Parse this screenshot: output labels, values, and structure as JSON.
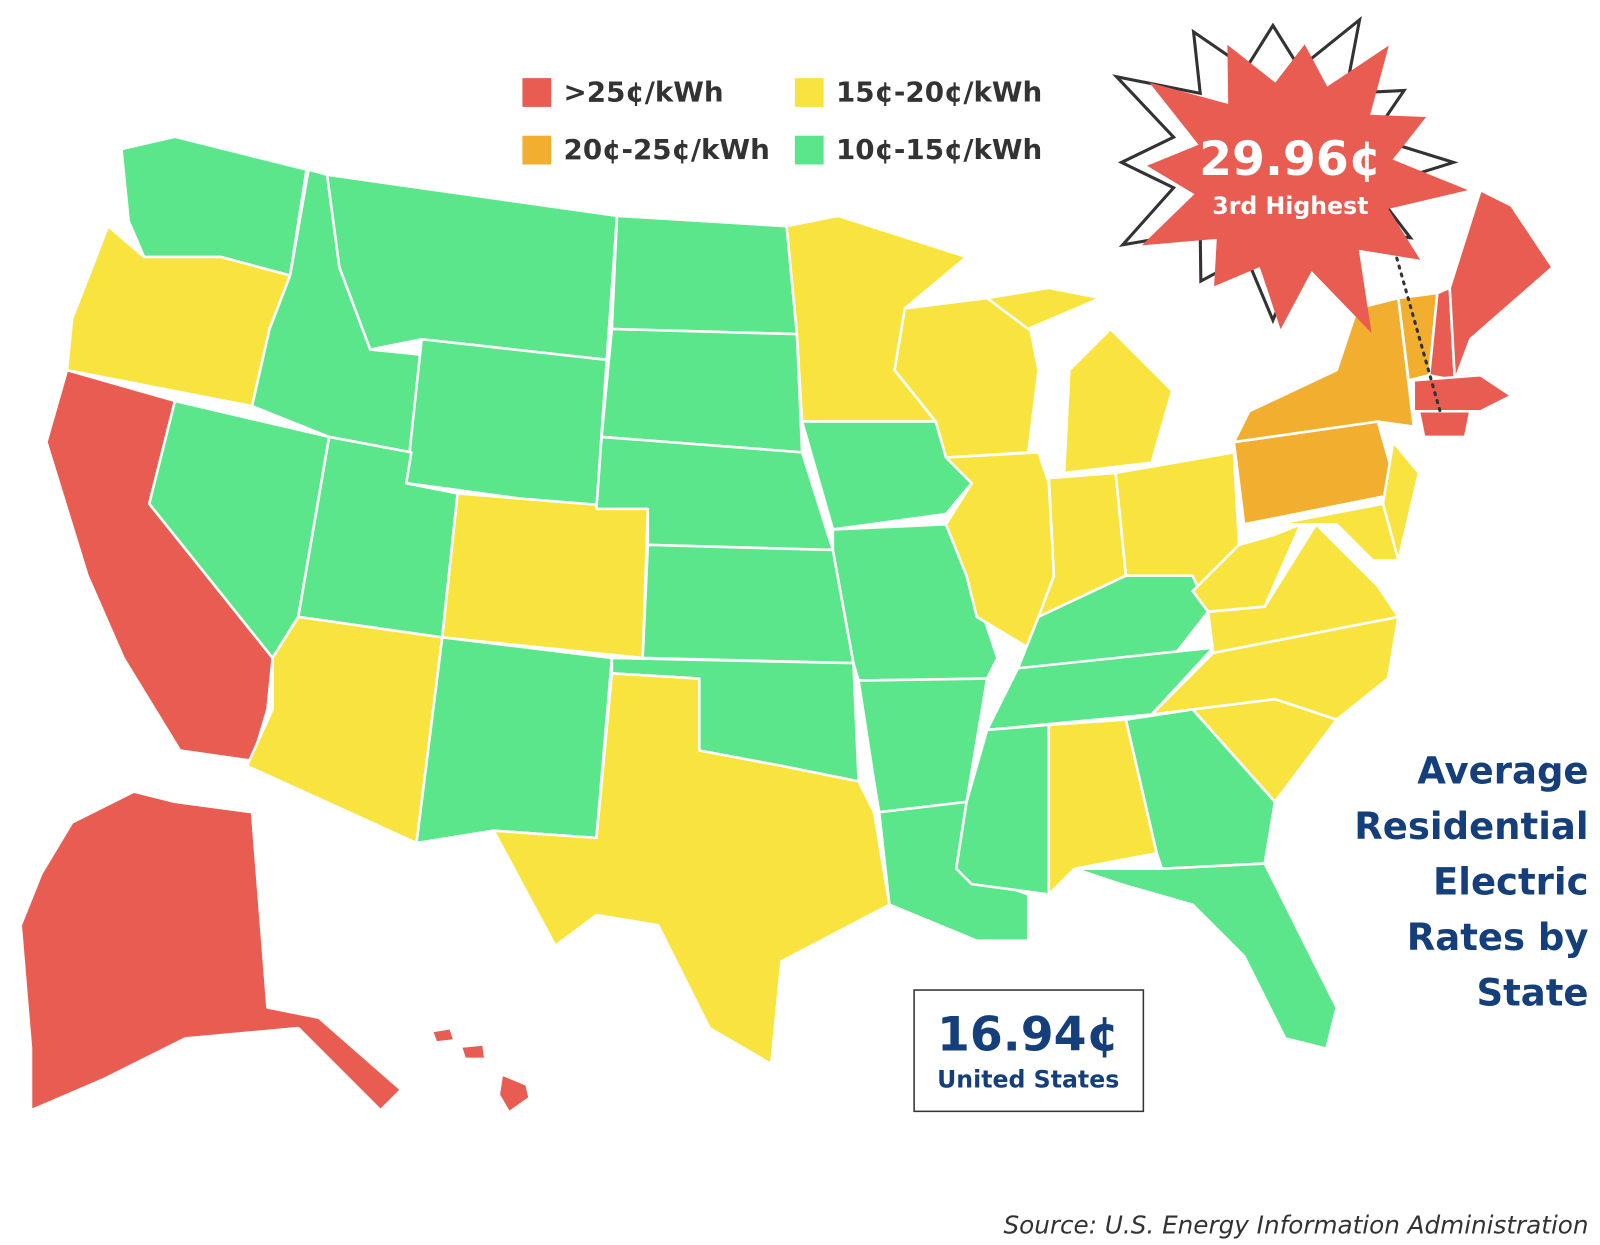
{
  "legend": [
    {
      "label": ">25¢/kWh",
      "color": "#e85c52"
    },
    {
      "label": "15¢-20¢/kWh",
      "color": "#f9e43f"
    },
    {
      "label": "20¢-25¢/kWh",
      "color": "#f2ae2e"
    },
    {
      "label": "10¢-15¢/kWh",
      "color": "#5ce68c"
    }
  ],
  "callout": {
    "value": "29.96¢",
    "label": "3rd Highest"
  },
  "us_average": {
    "value": "16.94¢",
    "label": "United States"
  },
  "title_lines": [
    "Average",
    "Residential",
    "Electric",
    "Rates by",
    "State"
  ],
  "source": "Source: U.S. Energy Information Administration"
}
